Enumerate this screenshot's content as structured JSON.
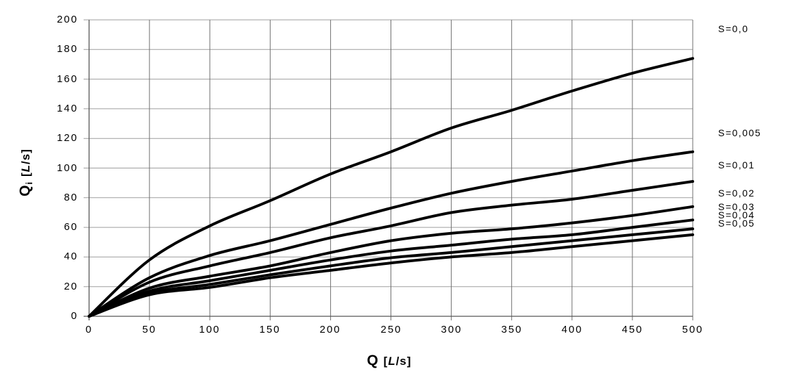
{
  "chart_data": {
    "type": "line",
    "title": "",
    "xlabel": "Q [L/s]",
    "ylabel": "Qi [L/s]",
    "xlim": [
      0,
      500
    ],
    "ylim": [
      0,
      200
    ],
    "x_ticks": [
      0,
      50,
      100,
      150,
      200,
      250,
      300,
      350,
      400,
      450,
      500
    ],
    "y_ticks": [
      0,
      20,
      40,
      60,
      80,
      100,
      120,
      140,
      160,
      180,
      200
    ],
    "grid": true,
    "legend_position": "right-margin",
    "x": [
      0,
      50,
      100,
      150,
      200,
      250,
      300,
      350,
      400,
      450,
      500
    ],
    "series": [
      {
        "name": "S=0,0",
        "values": [
          0,
          38,
          61,
          78,
          96,
          111,
          127,
          139,
          152,
          164,
          174
        ],
        "label_y": 194
      },
      {
        "name": "S=0,005",
        "values": [
          0,
          26,
          41,
          51,
          62,
          73,
          83,
          91,
          98,
          105,
          111
        ],
        "label_y": 124
      },
      {
        "name": "S=0,01",
        "values": [
          0,
          23,
          34,
          43,
          53,
          61,
          70,
          75,
          79,
          85,
          91
        ],
        "label_y": 102
      },
      {
        "name": "S=0,02",
        "values": [
          0,
          19,
          27,
          34,
          43,
          51,
          56,
          59,
          63,
          68,
          74
        ],
        "label_y": 83
      },
      {
        "name": "S=0,03",
        "values": [
          0,
          17,
          24,
          31,
          38,
          44,
          48,
          52,
          55,
          60,
          65
        ],
        "label_y": 74
      },
      {
        "name": "S=0,04",
        "values": [
          0,
          15.5,
          21.5,
          28,
          34,
          39.5,
          43,
          47,
          51,
          55,
          59
        ],
        "label_y": 68.5
      },
      {
        "name": "S=0,05",
        "values": [
          0,
          14.5,
          19.5,
          26,
          31,
          36,
          40,
          43,
          47,
          51,
          55
        ],
        "label_y": 63
      }
    ]
  },
  "axis_titles": {
    "x_symbol": "Q",
    "x_unit_open": "[",
    "x_unit_italic": "L",
    "x_unit_close": "/s]",
    "y_symbol": "Q",
    "y_subscript": "i",
    "y_unit_open": "[",
    "y_unit_italic": "L",
    "y_unit_close": "/s]"
  },
  "colors": {
    "curve": "#000000",
    "grid_vertical": "#6e6e6e",
    "grid_horizontal": "#9e9e9e",
    "axis": "#555555",
    "background": "#ffffff",
    "text": "#000000"
  }
}
